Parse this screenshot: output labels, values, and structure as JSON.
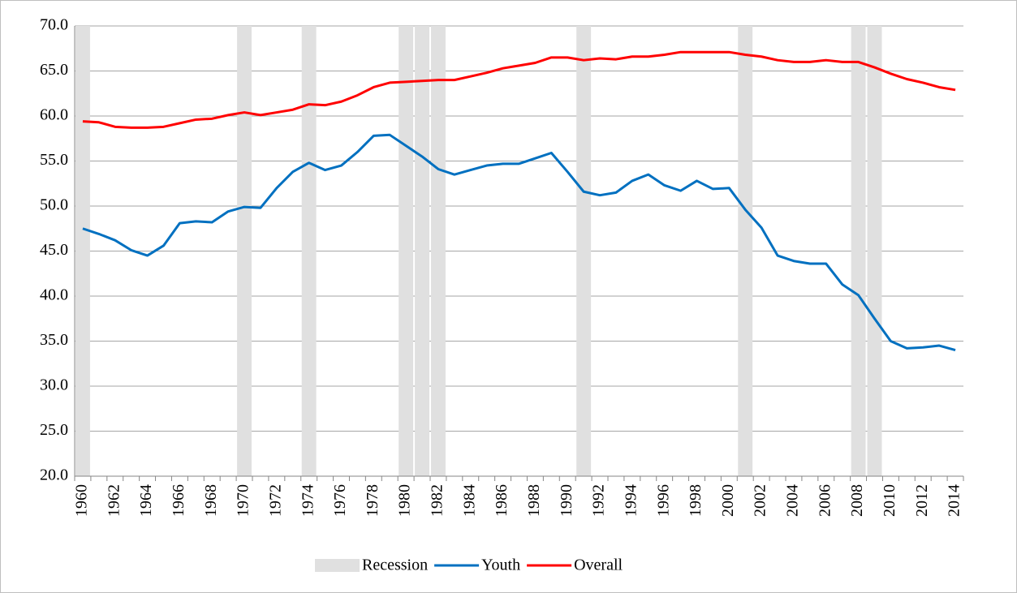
{
  "chart_data": {
    "type": "line",
    "categories": [
      1960,
      null,
      1962,
      null,
      1964,
      null,
      1966,
      null,
      1968,
      null,
      1970,
      null,
      1972,
      null,
      1974,
      null,
      1976,
      null,
      1978,
      null,
      1980,
      null,
      1982,
      null,
      1984,
      null,
      1986,
      null,
      1988,
      null,
      1990,
      null,
      1992,
      null,
      1994,
      null,
      1996,
      null,
      1998,
      null,
      2000,
      null,
      2002,
      null,
      2004,
      null,
      2006,
      null,
      2008,
      null,
      2010,
      null,
      2012,
      null,
      2014
    ],
    "series": [
      {
        "name": "Recession",
        "kind": "bar",
        "color": "#e0e0e0",
        "values": [
          70,
          null,
          null,
          null,
          null,
          null,
          null,
          null,
          null,
          null,
          70,
          null,
          null,
          null,
          70,
          null,
          null,
          null,
          null,
          null,
          70,
          70,
          70,
          null,
          null,
          null,
          null,
          null,
          null,
          null,
          null,
          70,
          null,
          null,
          null,
          null,
          null,
          null,
          null,
          null,
          null,
          70,
          null,
          null,
          null,
          null,
          null,
          null,
          70,
          70,
          null,
          null,
          null,
          null,
          null
        ]
      },
      {
        "name": "Youth",
        "kind": "line",
        "color": "#0070c0",
        "values": [
          47.5,
          46.9,
          46.2,
          45.1,
          44.5,
          45.6,
          48.1,
          48.3,
          48.2,
          49.4,
          49.9,
          49.8,
          52.0,
          53.8,
          54.8,
          54.0,
          54.5,
          56.0,
          57.8,
          57.9,
          56.7,
          55.5,
          54.1,
          53.5,
          54.0,
          54.5,
          54.7,
          54.7,
          55.3,
          55.9,
          53.8,
          51.6,
          51.2,
          51.5,
          52.8,
          53.5,
          52.3,
          51.7,
          52.8,
          51.9,
          52.0,
          49.6,
          47.6,
          44.5,
          43.9,
          43.6,
          43.6,
          41.3,
          40.1,
          37.5,
          35.0,
          34.2,
          34.3,
          34.5,
          34.0
        ]
      },
      {
        "name": "Overall",
        "kind": "line",
        "color": "#ff0000",
        "values": [
          59.4,
          59.3,
          58.8,
          58.7,
          58.7,
          58.8,
          59.2,
          59.6,
          59.7,
          60.1,
          60.4,
          60.1,
          60.4,
          60.7,
          61.3,
          61.2,
          61.6,
          62.3,
          63.2,
          63.7,
          63.8,
          63.9,
          64.0,
          64.0,
          64.4,
          64.8,
          65.3,
          65.6,
          65.9,
          66.5,
          66.5,
          66.2,
          66.4,
          66.3,
          66.6,
          66.6,
          66.8,
          67.1,
          67.1,
          67.1,
          67.1,
          66.8,
          66.6,
          66.2,
          66.0,
          66.0,
          66.2,
          66.0,
          66.0,
          65.4,
          64.7,
          64.1,
          63.7,
          63.2,
          62.9
        ]
      }
    ],
    "ylim": [
      20,
      70
    ],
    "yticks": [
      {
        "value": 20,
        "label": "20.0"
      },
      {
        "value": 25,
        "label": "25.0"
      },
      {
        "value": 30,
        "label": "30.0"
      },
      {
        "value": 35,
        "label": "35.0"
      },
      {
        "value": 40,
        "label": "40.0"
      },
      {
        "value": 45,
        "label": "45.0"
      },
      {
        "value": 50,
        "label": "50.0"
      },
      {
        "value": 55,
        "label": "55.0"
      },
      {
        "value": 60,
        "label": "60.0"
      },
      {
        "value": 65,
        "label": "65.0"
      },
      {
        "value": 70,
        "label": "70.0"
      }
    ],
    "grid": true,
    "legend": "bottom"
  }
}
